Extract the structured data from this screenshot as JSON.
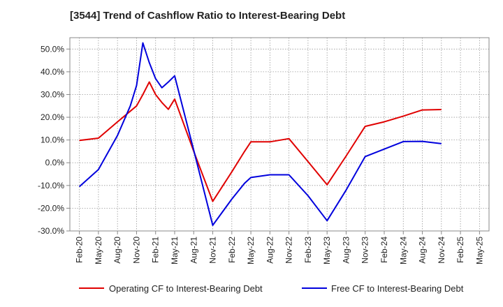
{
  "chart_data": {
    "type": "line",
    "title": "[3544]  Trend of Cashflow Ratio to Interest-Bearing Debt",
    "xlabel": "",
    "ylabel": "",
    "categories": [
      "Feb-20",
      "May-20",
      "Aug-20",
      "Nov-20",
      "Feb-21",
      "May-21",
      "Aug-21",
      "Nov-21",
      "Feb-22",
      "May-22",
      "Aug-22",
      "Nov-22",
      "Feb-23",
      "May-23",
      "Aug-23",
      "Nov-23",
      "Feb-24",
      "May-24",
      "Aug-24",
      "Nov-24",
      "Feb-25",
      "May-25"
    ],
    "ylim": [
      -30,
      55
    ],
    "yticks": [
      "-30.0%",
      "-20.0%",
      "-10.0%",
      "0.0%",
      "10.0%",
      "20.0%",
      "30.0%",
      "40.0%",
      "50.0%"
    ],
    "yticks_values": [
      -30,
      -20,
      -10,
      0,
      10,
      20,
      30,
      40,
      50
    ],
    "grid": true,
    "legend_position": "bottom",
    "series": [
      {
        "name": "Operating CF to Interest-Bearing Debt",
        "color": "#e00000",
        "x": [
          0,
          1,
          2,
          3,
          3.33,
          3.67,
          4,
          4.33,
          4.67,
          5,
          6,
          7,
          8,
          8.67,
          9,
          10,
          11,
          12,
          13,
          14,
          15,
          16,
          17,
          18,
          19
        ],
        "y": [
          9.8,
          10.8,
          18,
          25,
          30,
          35.5,
          30,
          26.5,
          23.5,
          28,
          5,
          -17,
          -4,
          5,
          9.2,
          9.2,
          10.6,
          0.5,
          -9.7,
          3,
          16,
          18,
          20.5,
          23.2,
          23.4
        ]
      },
      {
        "name": "Free CF to Interest-Bearing Debt",
        "color": "#0000dd",
        "x": [
          0,
          1,
          2,
          2.67,
          3,
          3.33,
          3.67,
          4,
          4.33,
          4.67,
          5,
          6,
          7,
          8,
          8.67,
          9,
          10,
          11,
          12,
          13,
          14,
          15,
          16,
          17,
          18,
          19
        ],
        "y": [
          -10.5,
          -3,
          12,
          25,
          34,
          52.7,
          44,
          37,
          33,
          35.5,
          38.2,
          5.5,
          -27.5,
          -16,
          -9,
          -6.5,
          -5.3,
          -5.3,
          -14.5,
          -25.5,
          -12,
          2.7,
          6,
          9.3,
          9.4,
          8.4
        ]
      }
    ]
  }
}
